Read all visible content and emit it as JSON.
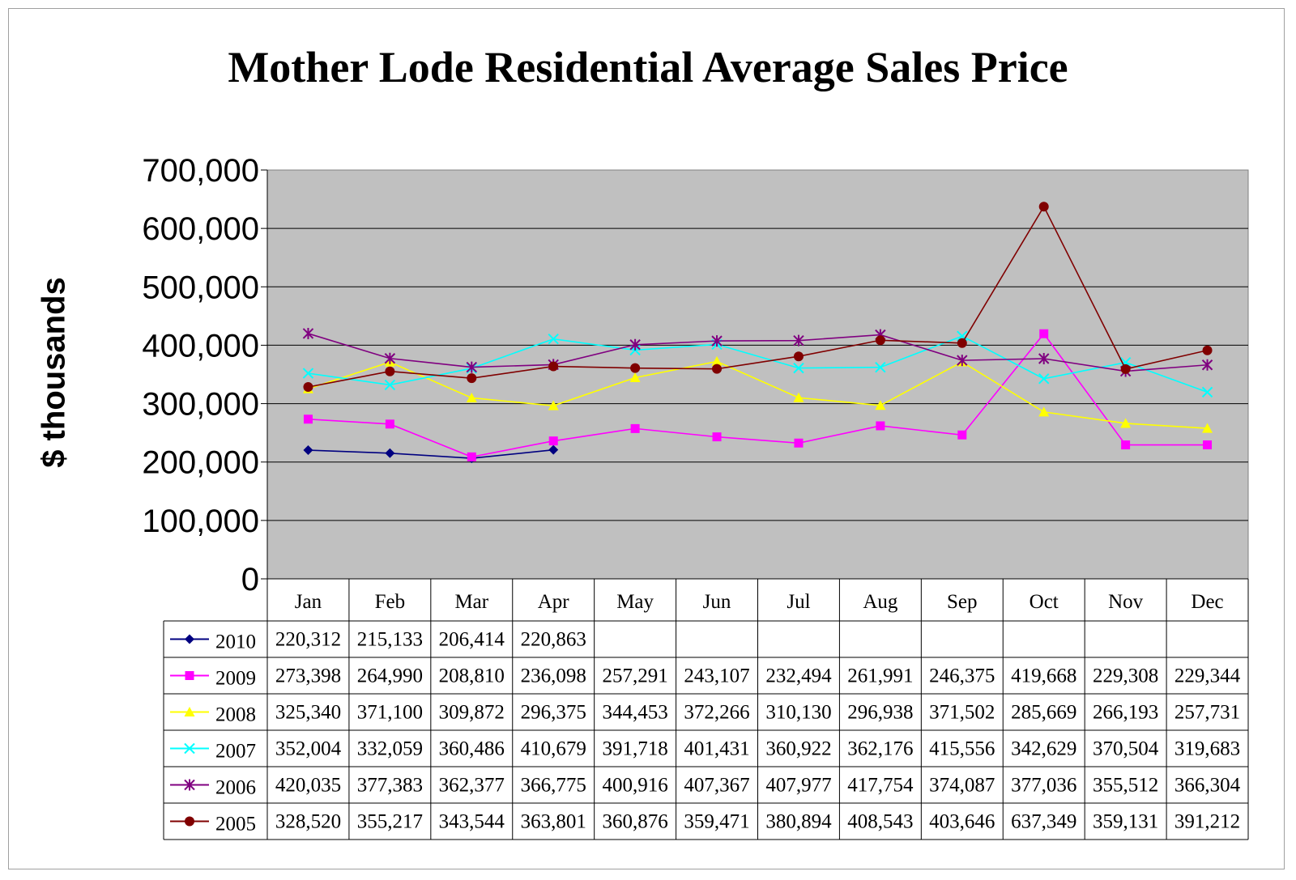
{
  "chart_data": {
    "type": "line",
    "title": "Mother Lode Residential Average Sales Price",
    "ylabel": "$ thousands",
    "xlabel": "",
    "ylim": [
      0,
      700000
    ],
    "yticks": [
      "0",
      "100,000",
      "200,000",
      "300,000",
      "400,000",
      "500,000",
      "600,000",
      "700,000"
    ],
    "categories": [
      "Jan",
      "Feb",
      "Mar",
      "Apr",
      "May",
      "Jun",
      "Jul",
      "Aug",
      "Sep",
      "Oct",
      "Nov",
      "Dec"
    ],
    "grid": true,
    "legend": "data-table-left",
    "series": [
      {
        "name": "2010",
        "color": "#000080",
        "marker": "diamond",
        "values": [
          220312,
          215133,
          206414,
          220863,
          null,
          null,
          null,
          null,
          null,
          null,
          null,
          null
        ],
        "labels": [
          "220,312",
          "215,133",
          "206,414",
          "220,863",
          "",
          "",
          "",
          "",
          "",
          "",
          "",
          ""
        ]
      },
      {
        "name": "2009",
        "color": "#ff00ff",
        "marker": "square",
        "values": [
          273398,
          264990,
          208810,
          236098,
          257291,
          243107,
          232494,
          261991,
          246375,
          419668,
          229308,
          229344
        ],
        "labels": [
          "273,398",
          "264,990",
          "208,810",
          "236,098",
          "257,291",
          "243,107",
          "232,494",
          "261,991",
          "246,375",
          "419,668",
          "229,308",
          "229,344"
        ]
      },
      {
        "name": "2008",
        "color": "#ffff00",
        "marker": "triangle",
        "values": [
          325340,
          371100,
          309872,
          296375,
          344453,
          372266,
          310130,
          296938,
          371502,
          285669,
          266193,
          257731
        ],
        "labels": [
          "325,340",
          "371,100",
          "309,872",
          "296,375",
          "344,453",
          "372,266",
          "310,130",
          "296,938",
          "371,502",
          "285,669",
          "266,193",
          "257,731"
        ]
      },
      {
        "name": "2007",
        "color": "#00ffff",
        "marker": "x",
        "values": [
          352004,
          332059,
          360486,
          410679,
          391718,
          401431,
          360922,
          362176,
          415556,
          342629,
          370504,
          319683
        ],
        "labels": [
          "352,004",
          "332,059",
          "360,486",
          "410,679",
          "391,718",
          "401,431",
          "360,922",
          "362,176",
          "415,556",
          "342,629",
          "370,504",
          "319,683"
        ]
      },
      {
        "name": "2006",
        "color": "#800080",
        "marker": "star",
        "values": [
          420035,
          377383,
          362377,
          366775,
          400916,
          407367,
          407977,
          417754,
          374087,
          377036,
          355512,
          366304
        ],
        "labels": [
          "420,035",
          "377,383",
          "362,377",
          "366,775",
          "400,916",
          "407,367",
          "407,977",
          "417,754",
          "374,087",
          "377,036",
          "355,512",
          "366,304"
        ]
      },
      {
        "name": "2005",
        "color": "#800000",
        "marker": "circle",
        "values": [
          328520,
          355217,
          343544,
          363801,
          360876,
          359471,
          380894,
          408543,
          403646,
          637349,
          359131,
          391212
        ],
        "labels": [
          "328,520",
          "355,217",
          "343,544",
          "363,801",
          "360,876",
          "359,471",
          "380,894",
          "408,543",
          "403,646",
          "637,349",
          "359,131",
          "391,212"
        ]
      }
    ]
  }
}
